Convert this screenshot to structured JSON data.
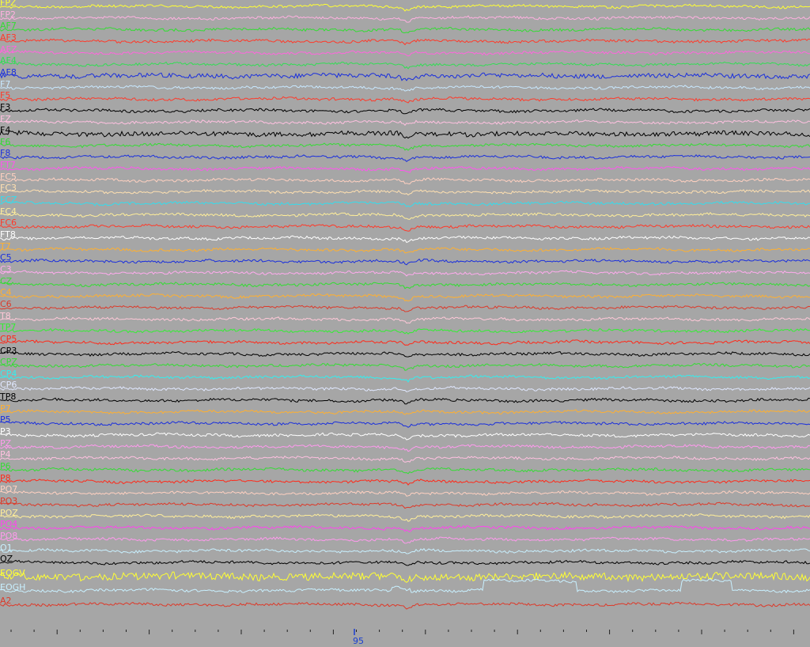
{
  "viewer": {
    "background": "#a6a6a6",
    "channels": [
      {
        "name": "FPZ",
        "color": "#ffff33"
      },
      {
        "name": "FP2",
        "color": "#ffb0e0"
      },
      {
        "name": "AF7",
        "color": "#33dd33"
      },
      {
        "name": "AF3",
        "color": "#ff3a2a"
      },
      {
        "name": "AFZ",
        "color": "#ff66dd"
      },
      {
        "name": "AF4",
        "color": "#33dd55"
      },
      {
        "name": "AF8",
        "color": "#1a2fdd"
      },
      {
        "name": "F7",
        "color": "#c8e8ff"
      },
      {
        "name": "F5",
        "color": "#ff3a2a"
      },
      {
        "name": "F3",
        "color": "#000000"
      },
      {
        "name": "FZ",
        "color": "#ffc0e0"
      },
      {
        "name": "F4",
        "color": "#000000"
      },
      {
        "name": "F6",
        "color": "#33dd33"
      },
      {
        "name": "F8",
        "color": "#1a2fdd"
      },
      {
        "name": "FT7",
        "color": "#ff55ee"
      },
      {
        "name": "FC5",
        "color": "#ffd0c0"
      },
      {
        "name": "FC3",
        "color": "#ffe0b0"
      },
      {
        "name": "FCZ",
        "color": "#33ddee"
      },
      {
        "name": "FC4",
        "color": "#ffee99"
      },
      {
        "name": "FC6",
        "color": "#ff3a2a"
      },
      {
        "name": "FT8",
        "color": "#ffffff"
      },
      {
        "name": "T7",
        "color": "#ffb030"
      },
      {
        "name": "C5",
        "color": "#1a2fdd"
      },
      {
        "name": "C3",
        "color": "#ffaaee"
      },
      {
        "name": "CZ",
        "color": "#33dd33"
      },
      {
        "name": "C4",
        "color": "#ffb030"
      },
      {
        "name": "C6",
        "color": "#dd3a2a"
      },
      {
        "name": "T8",
        "color": "#ffc8d8"
      },
      {
        "name": "TP7",
        "color": "#33ee33"
      },
      {
        "name": "CP5",
        "color": "#ff2a1a"
      },
      {
        "name": "CP3",
        "color": "#000000"
      },
      {
        "name": "CPZ",
        "color": "#33dd33"
      },
      {
        "name": "CP4",
        "color": "#33eeee"
      },
      {
        "name": "CP6",
        "color": "#e0e8ff"
      },
      {
        "name": "TP8",
        "color": "#000000"
      },
      {
        "name": "P7",
        "color": "#ffb030"
      },
      {
        "name": "P5",
        "color": "#1a2fdd"
      },
      {
        "name": "P3",
        "color": "#ffffff"
      },
      {
        "name": "PZ",
        "color": "#ff99ee"
      },
      {
        "name": "P4",
        "color": "#ffc0e0"
      },
      {
        "name": "P6",
        "color": "#33dd33"
      },
      {
        "name": "P8",
        "color": "#ff2a1a"
      },
      {
        "name": "PO7",
        "color": "#ffd0c0"
      },
      {
        "name": "PO3",
        "color": "#dd3a2a"
      },
      {
        "name": "POZ",
        "color": "#ffee99"
      },
      {
        "name": "PO4",
        "color": "#ff44ee"
      },
      {
        "name": "PO8",
        "color": "#ff99ee"
      },
      {
        "name": "O1",
        "color": "#c8f0ff"
      },
      {
        "name": "OZ",
        "color": "#000000"
      },
      {
        "name": "EOGV",
        "color": "#ffff33"
      },
      {
        "name": "EOGH",
        "color": "#c8f0ff"
      },
      {
        "name": "A2",
        "color": "#dd3a2a"
      }
    ],
    "time_axis": {
      "marked_label": "95",
      "label_color": "#1a3fd0"
    }
  }
}
